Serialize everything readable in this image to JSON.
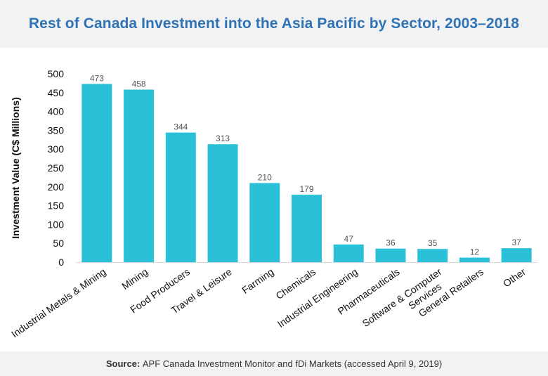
{
  "title": "Rest of Canada Investment into the Asia Pacific by Sector, 2003–2018",
  "source": {
    "label": "Source:",
    "text": "APF Canada Investment Monitor and fDi Markets (accessed April 9, 2019)"
  },
  "colors": {
    "bar": "#29c0d8",
    "title": "#2f73b6",
    "band": "#f2f2f2"
  },
  "chart_data": {
    "type": "bar",
    "title": "Rest of Canada Investment into the Asia Pacific by Sector, 2003–2018",
    "xlabel": "",
    "ylabel": "Investment Value (C$ Millions)",
    "ylim": [
      0,
      500
    ],
    "yticks": [
      0,
      50,
      100,
      150,
      200,
      250,
      300,
      350,
      400,
      450,
      500
    ],
    "grid": false,
    "legend": "none",
    "categories": [
      "Industrial Metals & Mining",
      "Mining",
      "Food Producers",
      "Travel & Leisure",
      "Farming",
      "Chemicals",
      "Industrial Engineering",
      "Pharmaceuticals",
      "Software & Computer Services",
      "General Retailers",
      "Other"
    ],
    "category_lines": [
      [
        "Industrial Metals & Mining"
      ],
      [
        "Mining"
      ],
      [
        "Food Producers"
      ],
      [
        "Travel & Leisure"
      ],
      [
        "Farming"
      ],
      [
        "Chemicals"
      ],
      [
        "Industrial Engineering"
      ],
      [
        "Pharmaceuticals"
      ],
      [
        "Software & Computer",
        "Services"
      ],
      [
        "General Retailers"
      ],
      [
        "Other"
      ]
    ],
    "values": [
      473,
      458,
      344,
      313,
      210,
      179,
      47,
      36,
      35,
      12,
      37
    ]
  }
}
